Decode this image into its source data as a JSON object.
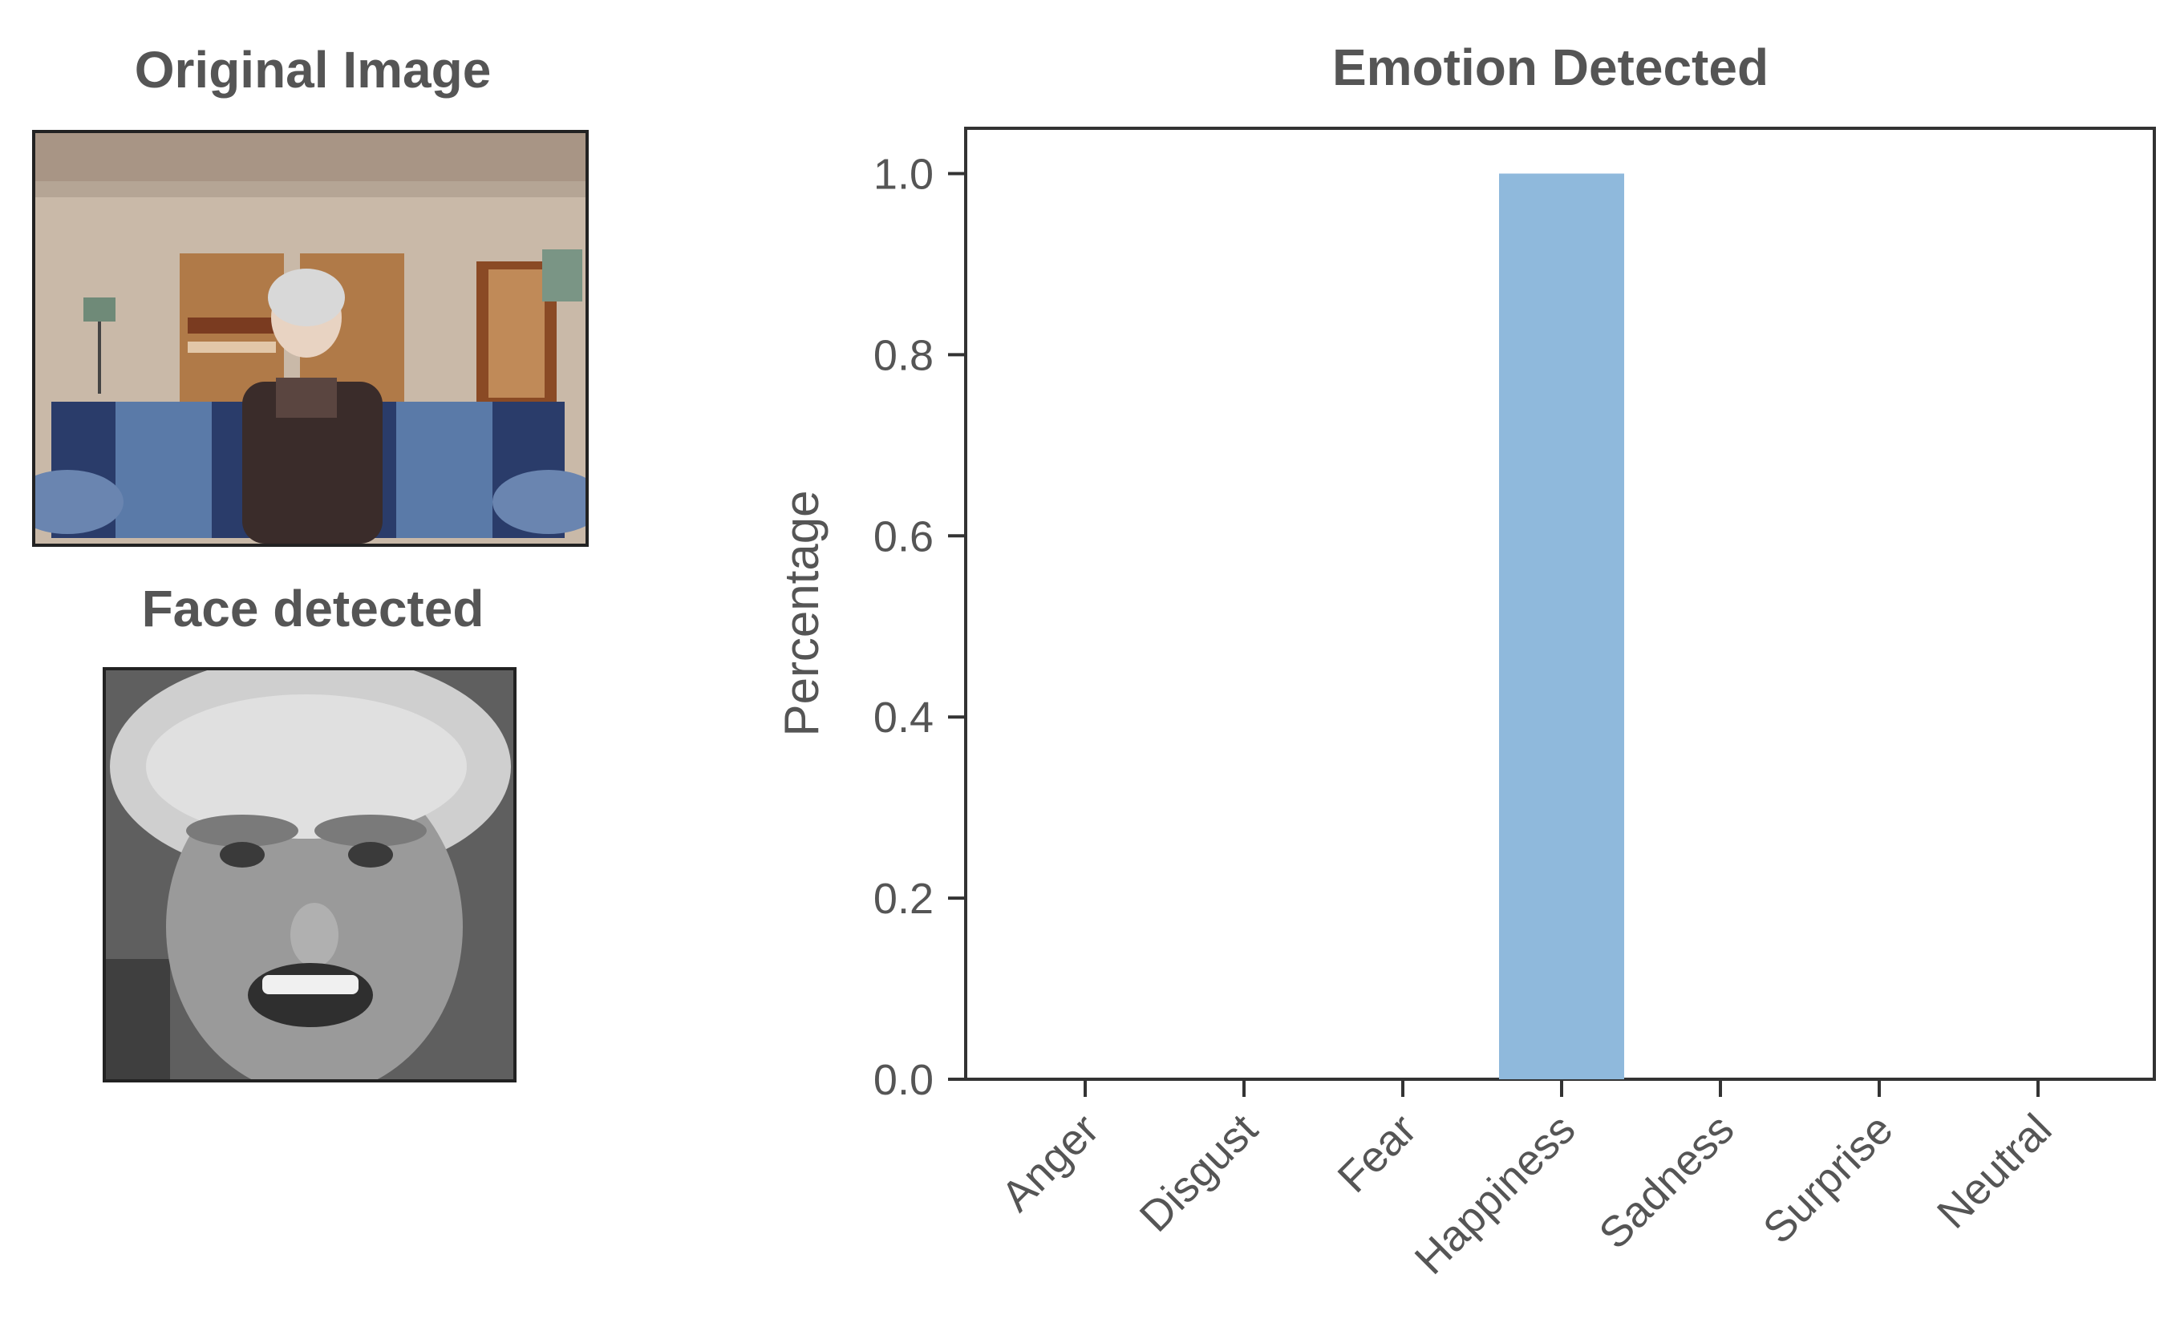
{
  "panels": {
    "original_title": "Original Image",
    "face_title": "Face detected"
  },
  "chart_data": {
    "type": "bar",
    "title": "Emotion Detected",
    "xlabel": "",
    "ylabel": "Percentage",
    "categories": [
      "Anger",
      "Disgust",
      "Fear",
      "Happiness",
      "Sadness",
      "Surprise",
      "Neutral"
    ],
    "values": [
      0,
      0,
      0,
      1.0,
      0,
      0,
      0
    ],
    "ylim": [
      0,
      1.05
    ],
    "yticks": [
      "0.0",
      "0.2",
      "0.4",
      "0.6",
      "0.8",
      "1.0"
    ],
    "bar_color": "#8fb9dc",
    "grid": false,
    "legend": "none"
  }
}
